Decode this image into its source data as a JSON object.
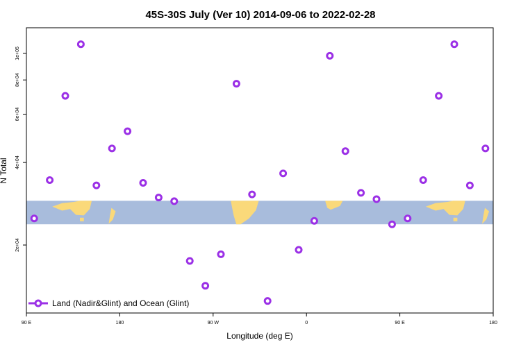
{
  "chart_data": {
    "type": "scatter",
    "title": "45S-30S July (Ver 10)   2014-09-06 to 2022-02-28",
    "xlabel": "Longitude (deg E)",
    "ylabel": "N Total",
    "x_domain": [
      90,
      540
    ],
    "y_scale": "log",
    "ylim": [
      11300,
      124000
    ],
    "x_ticks": [
      {
        "value": 90,
        "label": "90 E"
      },
      {
        "value": 180,
        "label": "180"
      },
      {
        "value": 270,
        "label": "90 W"
      },
      {
        "value": 360,
        "label": "0"
      },
      {
        "value": 450,
        "label": "90 E"
      },
      {
        "value": 540,
        "label": "180"
      }
    ],
    "y_ticks": [
      {
        "value": 20000,
        "label": "2e+04"
      },
      {
        "value": 40000,
        "label": "4e+04"
      },
      {
        "value": 60000,
        "label": "6e+04"
      },
      {
        "value": 80000,
        "label": "8e+04"
      },
      {
        "value": 100000,
        "label": "1e+05"
      }
    ],
    "series": [
      {
        "name": "Land (Nadir&Glint) and Ocean (Glint)",
        "color": "#9b30e6",
        "x": [
          97.5,
          112.5,
          127.5,
          142.5,
          157.5,
          172.5,
          187.5,
          202.5,
          217.5,
          232.5,
          247.5,
          262.5,
          277.5,
          292.5,
          307.5,
          322.5,
          337.5,
          352.5,
          367.5,
          382.5,
          397.5,
          412.5,
          427.5,
          442.5,
          457.5,
          472.5,
          487.5,
          502.5,
          517.5,
          532.5
        ],
        "y": [
          25000,
          34500,
          70000,
          108000,
          33000,
          45000,
          52000,
          33700,
          29800,
          28900,
          17500,
          14200,
          18500,
          77500,
          30600,
          12500,
          36500,
          19200,
          24500,
          98000,
          44000,
          31000,
          29400,
          23800,
          25000,
          34500,
          70000,
          108000,
          33000,
          45000
        ]
      }
    ],
    "background_band": {
      "y_range": [
        23800,
        29000
      ],
      "ocean_color": "#a8bcdc",
      "land_color": "#fad97a"
    },
    "legend": {
      "position": "bottom-left"
    }
  }
}
